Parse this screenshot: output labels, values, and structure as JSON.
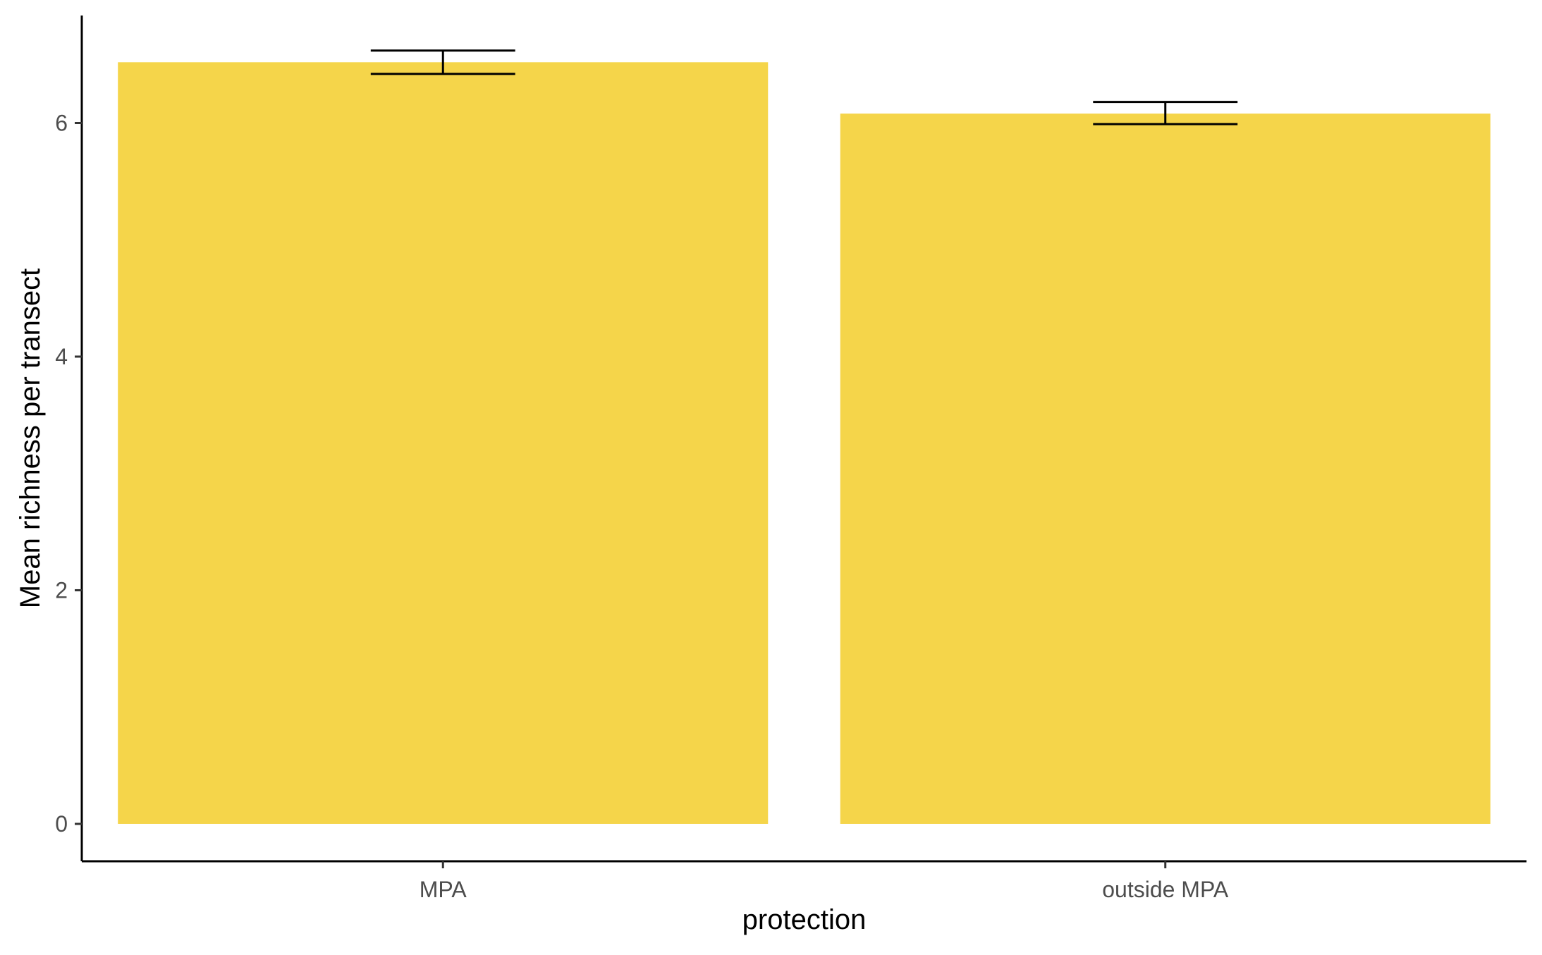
{
  "chart_data": {
    "type": "bar",
    "title": "",
    "xlabel": "protection",
    "ylabel": "Mean richness per transect",
    "categories": [
      "MPA",
      "outside MPA"
    ],
    "values": [
      6.52,
      6.08
    ],
    "error_bars": [
      {
        "low": 6.42,
        "high": 6.62
      },
      {
        "low": 5.99,
        "high": 6.18
      }
    ],
    "ylim": [
      -0.32,
      6.92
    ],
    "yticks": [
      0,
      2,
      4,
      6
    ],
    "grid": false,
    "legend": "none",
    "colors": {
      "bar": "#F5D54A",
      "axis": "#000000",
      "tick_label": "#4d4d4d",
      "error_bar": "#000000"
    }
  }
}
